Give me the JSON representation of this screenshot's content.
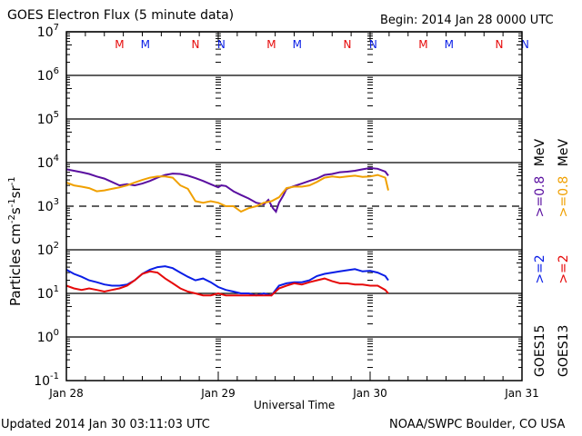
{
  "header": {
    "title": "GOES Electron Flux (5 minute data)",
    "begin": "Begin: 2014 Jan 28 0000 UTC"
  },
  "footer": {
    "updated": "Updated 2014 Jan 30 03:11:03 UTC",
    "credit": "NOAA/SWPC Boulder, CO USA"
  },
  "colors": {
    "goes15_08": "#5a0fa0",
    "goes13_08": "#f0a000",
    "goes15_2": "#0a1ee6",
    "goes13_2": "#e60a0a",
    "marker_red": "#e60a0a",
    "marker_blue": "#0a1ee6",
    "frame": "#000000"
  },
  "chart_data": {
    "type": "line",
    "title": "GOES Electron Flux (5 minute data)",
    "xlabel": "Universal Time",
    "ylabel": "Particles cm⁻²s⁻¹sr⁻¹",
    "ylabel_parts": {
      "base": "Particles cm",
      "sup1": "-2",
      "s": "s",
      "sup2": "-1",
      "sr": "sr",
      "sup3": "-1"
    },
    "yscale": "log",
    "ylim": [
      0.1,
      10000000
    ],
    "xlim_days": [
      0,
      3
    ],
    "x_tick_labels": [
      "Jan 28",
      "Jan 29",
      "Jan 30",
      "Jan 31"
    ],
    "y_tick_labels": [
      {
        "base": "10",
        "exp": "7",
        "value": 10000000
      },
      {
        "base": "10",
        "exp": "6",
        "value": 1000000
      },
      {
        "base": "10",
        "exp": "5",
        "value": 100000
      },
      {
        "base": "10",
        "exp": "4",
        "value": 10000
      },
      {
        "base": "10",
        "exp": "3",
        "value": 1000
      },
      {
        "base": "10",
        "exp": "2",
        "value": 100
      },
      {
        "base": "10",
        "exp": "1",
        "value": 10
      },
      {
        "base": "10",
        "exp": "0",
        "value": 1
      },
      {
        "base": "10",
        "exp": "-1",
        "value": 0.1
      }
    ],
    "threshold_dashed": 1000,
    "grid_decades": [
      10000000,
      1000000,
      100000,
      10000,
      100,
      10,
      1
    ],
    "markers": [
      {
        "label": "M",
        "color": "red",
        "day": 0.35
      },
      {
        "label": "M",
        "color": "blue",
        "day": 0.52
      },
      {
        "label": "N",
        "color": "red",
        "day": 0.85
      },
      {
        "label": "N",
        "color": "blue",
        "day": 1.02
      },
      {
        "label": "M",
        "color": "red",
        "day": 1.35
      },
      {
        "label": "M",
        "color": "blue",
        "day": 1.52
      },
      {
        "label": "N",
        "color": "red",
        "day": 1.85
      },
      {
        "label": "N",
        "color": "blue",
        "day": 2.02
      },
      {
        "label": "M",
        "color": "red",
        "day": 2.35
      },
      {
        "label": "M",
        "color": "blue",
        "day": 2.52
      },
      {
        "label": "N",
        "color": "red",
        "day": 2.85
      },
      {
        "label": "N",
        "color": "blue",
        "day": 3.02
      }
    ],
    "legend": [
      {
        "text": "GOES15",
        "group": "sat"
      },
      {
        "text": "GOES13",
        "group": "sat"
      },
      {
        "text": ">=2",
        "color_key": "goes15_2"
      },
      {
        "text": ">=2",
        "color_key": "goes13_2"
      },
      {
        "text": ">=0.8",
        "color_key": "goes15_08"
      },
      {
        "text": ">=0.8",
        "color_key": "goes13_08"
      },
      {
        "text": "MeV",
        "group": "unit"
      },
      {
        "text": "MeV",
        "group": "unit"
      }
    ],
    "series": [
      {
        "name": "GOES15 >=0.8 MeV",
        "color_key": "goes15_08",
        "x": [
          0.0,
          0.05,
          0.1,
          0.15,
          0.2,
          0.25,
          0.3,
          0.35,
          0.4,
          0.45,
          0.5,
          0.55,
          0.6,
          0.65,
          0.7,
          0.75,
          0.8,
          0.85,
          0.9,
          0.95,
          1.0,
          1.02,
          1.05,
          1.1,
          1.15,
          1.2,
          1.25,
          1.3,
          1.33,
          1.36,
          1.38,
          1.4,
          1.43,
          1.45,
          1.5,
          1.55,
          1.6,
          1.65,
          1.7,
          1.75,
          1.8,
          1.85,
          1.9,
          1.95,
          2.0,
          2.05,
          2.1,
          2.12
        ],
        "y": [
          7000,
          6500,
          6000,
          5500,
          4800,
          4300,
          3600,
          3000,
          3200,
          3000,
          3300,
          3800,
          4500,
          5200,
          5600,
          5500,
          5000,
          4400,
          3800,
          3200,
          2700,
          3000,
          2900,
          2200,
          1800,
          1500,
          1200,
          1100,
          1400,
          900,
          750,
          1200,
          1800,
          2500,
          2900,
          3300,
          3800,
          4300,
          5200,
          5500,
          6000,
          6200,
          6500,
          7000,
          7500,
          7200,
          6200,
          5000
        ]
      },
      {
        "name": "GOES13 >=0.8 MeV",
        "color_key": "goes13_08",
        "x": [
          0.0,
          0.05,
          0.1,
          0.15,
          0.2,
          0.25,
          0.3,
          0.35,
          0.4,
          0.45,
          0.5,
          0.55,
          0.6,
          0.65,
          0.7,
          0.75,
          0.8,
          0.85,
          0.9,
          0.95,
          1.0,
          1.05,
          1.1,
          1.15,
          1.2,
          1.25,
          1.3,
          1.35,
          1.4,
          1.45,
          1.5,
          1.55,
          1.6,
          1.65,
          1.7,
          1.75,
          1.8,
          1.85,
          1.9,
          1.95,
          2.0,
          2.05,
          2.1,
          2.12
        ],
        "y": [
          3500,
          3000,
          2800,
          2600,
          2200,
          2300,
          2500,
          2700,
          3000,
          3500,
          4000,
          4500,
          4800,
          4800,
          4500,
          3000,
          2500,
          1300,
          1200,
          1300,
          1200,
          1000,
          1000,
          750,
          900,
          1000,
          1200,
          1300,
          1600,
          2600,
          2800,
          2800,
          3000,
          3600,
          4500,
          4800,
          4600,
          4800,
          5000,
          4700,
          4800,
          5200,
          4500,
          2300
        ]
      },
      {
        "name": "GOES15 >=2 MeV",
        "color_key": "goes15_2",
        "x": [
          0.0,
          0.05,
          0.1,
          0.15,
          0.2,
          0.25,
          0.3,
          0.35,
          0.4,
          0.45,
          0.5,
          0.55,
          0.6,
          0.65,
          0.7,
          0.75,
          0.8,
          0.85,
          0.9,
          0.95,
          1.0,
          1.05,
          1.1,
          1.15,
          1.2,
          1.25,
          1.3,
          1.35,
          1.4,
          1.45,
          1.5,
          1.55,
          1.6,
          1.65,
          1.7,
          1.75,
          1.8,
          1.85,
          1.9,
          1.95,
          2.0,
          2.05,
          2.1,
          2.12
        ],
        "y": [
          35,
          28,
          24,
          20,
          18,
          16,
          15,
          15,
          16,
          20,
          28,
          35,
          40,
          42,
          38,
          30,
          24,
          20,
          22,
          18,
          14,
          12,
          11,
          10,
          10,
          9,
          10,
          9,
          15,
          17,
          18,
          18,
          20,
          25,
          28,
          30,
          32,
          34,
          36,
          32,
          33,
          30,
          25,
          20
        ]
      },
      {
        "name": "GOES13 >=2 MeV",
        "color_key": "goes13_2",
        "x": [
          0.0,
          0.05,
          0.1,
          0.15,
          0.2,
          0.25,
          0.3,
          0.35,
          0.4,
          0.45,
          0.5,
          0.55,
          0.6,
          0.65,
          0.7,
          0.75,
          0.8,
          0.85,
          0.9,
          0.95,
          1.0,
          1.05,
          1.1,
          1.15,
          1.2,
          1.25,
          1.3,
          1.35,
          1.4,
          1.45,
          1.5,
          1.55,
          1.6,
          1.65,
          1.7,
          1.75,
          1.8,
          1.85,
          1.9,
          1.95,
          2.0,
          2.05,
          2.1,
          2.12
        ],
        "y": [
          15,
          13,
          12,
          13,
          12,
          11,
          12,
          13,
          15,
          20,
          28,
          32,
          30,
          22,
          17,
          13,
          11,
          10,
          9,
          9,
          10,
          9,
          9,
          9,
          9,
          9,
          9,
          9,
          13,
          15,
          17,
          16,
          18,
          20,
          22,
          19,
          17,
          17,
          16,
          16,
          15,
          15,
          12,
          10
        ]
      }
    ]
  }
}
